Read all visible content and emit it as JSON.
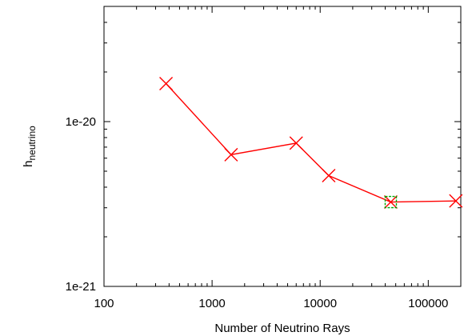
{
  "chart_data": {
    "type": "line",
    "title": "",
    "xlabel": "Number of Neutrino Rays",
    "ylabel_main": "h",
    "ylabel_sub": "neutrino",
    "x_scale": "log",
    "y_scale": "log",
    "xlim": [
      100,
      200000
    ],
    "ylim": [
      1e-21,
      5e-20
    ],
    "x_ticks": [
      {
        "value": 100,
        "label": "100"
      },
      {
        "value": 1000,
        "label": "1000"
      },
      {
        "value": 10000,
        "label": "10000"
      },
      {
        "value": 100000,
        "label": "100000"
      }
    ],
    "y_ticks": [
      {
        "value": 1e-21,
        "label": "1e-21"
      },
      {
        "value": 1e-20,
        "label": "1e-20"
      }
    ],
    "grid": false,
    "series": [
      {
        "color": "#ff0000",
        "marker": "x",
        "x": [
          375,
          1500,
          6000,
          12000,
          45000,
          180000
        ],
        "y": [
          1.7e-20,
          6.3e-21,
          7.4e-21,
          4.7e-21,
          3.25e-21,
          3.3e-21
        ]
      }
    ],
    "highlight_points": [
      {
        "x": 45000,
        "y": 3.25e-21,
        "marker": "square",
        "color": "#00aa00"
      }
    ]
  }
}
